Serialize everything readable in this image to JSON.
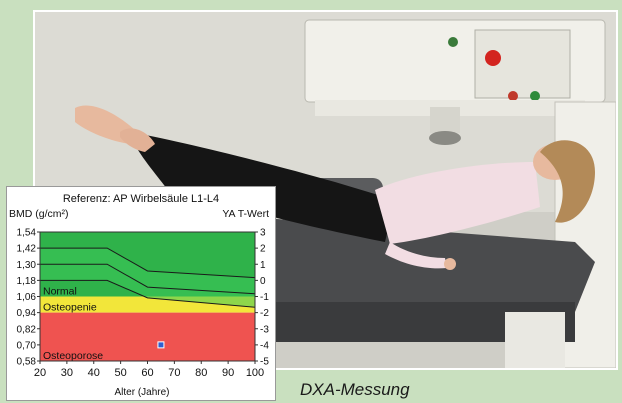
{
  "caption": "DXA-Messung",
  "chart_data": {
    "type": "line",
    "title": "Referenz: AP Wirbelsäule L1-L4",
    "ylabel_left": "BMD (g/cm²)",
    "ylabel_right": "YA T-Wert",
    "xlabel": "Alter (Jahre)",
    "x_ticks": [
      "20",
      "30",
      "40",
      "50",
      "60",
      "70",
      "80",
      "90",
      "100"
    ],
    "y_ticks_left": [
      "1,54",
      "1,42",
      "1,30",
      "1,18",
      "1,06",
      "0,94",
      "0,82",
      "0,70",
      "0,58"
    ],
    "y_ticks_right": [
      "3",
      "2",
      "1",
      "0",
      "-1",
      "-2",
      "-3",
      "-4",
      "-5"
    ],
    "xlim": [
      20,
      100
    ],
    "ylim": [
      0.58,
      1.54
    ],
    "zones": [
      {
        "label": "Normal",
        "from": 1.06,
        "to": 1.54,
        "color": "#2fb24a"
      },
      {
        "label": "Osteopenie",
        "from": 0.94,
        "to": 1.06,
        "color": "#f2e63a"
      },
      {
        "label": "Osteoporose",
        "from": 0.58,
        "to": 0.94,
        "color": "#ef5350"
      }
    ],
    "series": [
      {
        "x": [
          20,
          45,
          60,
          100
        ],
        "y": [
          1.42,
          1.42,
          1.25,
          1.2
        ]
      },
      {
        "x": [
          20,
          45,
          60,
          100
        ],
        "y": [
          1.3,
          1.3,
          1.13,
          1.08
        ]
      },
      {
        "x": [
          20,
          45,
          60,
          100
        ],
        "y": [
          1.18,
          1.18,
          1.05,
          0.98
        ]
      }
    ],
    "points": [
      {
        "x": 65,
        "y": 0.7
      }
    ],
    "colors": {
      "normal_band": "#3cc85a",
      "line": "#1a1a1a",
      "point_fill": "#2f5fd0"
    }
  }
}
